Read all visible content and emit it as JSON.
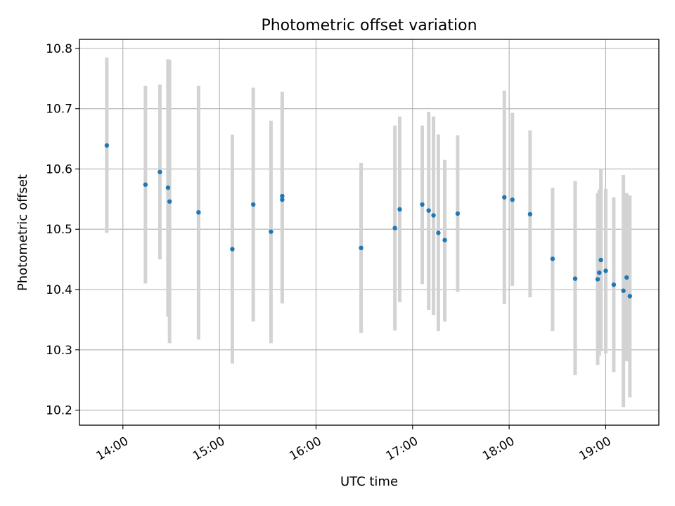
{
  "chart_data": {
    "type": "scatter",
    "title": "Photometric offset variation",
    "xlabel": "UTC time",
    "ylabel": "Photometric offset",
    "x_axis_type": "time",
    "xlim": [
      "13:33",
      "19:33"
    ],
    "ylim": [
      10.175,
      10.815
    ],
    "x_ticks": [
      "14:00",
      "15:00",
      "16:00",
      "17:00",
      "18:00",
      "19:00"
    ],
    "y_ticks": [
      10.2,
      10.3,
      10.4,
      10.5,
      10.6,
      10.7,
      10.8
    ],
    "y_tick_labels": [
      "10.2",
      "10.3",
      "10.4",
      "10.5",
      "10.6",
      "10.7",
      "10.8"
    ],
    "grid": true,
    "colors": {
      "point": "#1f77b4",
      "errorbar": "#d3d3d3"
    },
    "series": [
      {
        "points": [
          {
            "x": "13:50",
            "y": 10.639,
            "yerr_low": 10.494,
            "yerr_high": 10.785
          },
          {
            "x": "14:14",
            "y": 10.574,
            "yerr_low": 10.41,
            "yerr_high": 10.738
          },
          {
            "x": "14:23",
            "y": 10.595,
            "yerr_low": 10.45,
            "yerr_high": 10.74
          },
          {
            "x": "14:28",
            "y": 10.569,
            "yerr_low": 10.355,
            "yerr_high": 10.782
          },
          {
            "x": "14:29",
            "y": 10.546,
            "yerr_low": 10.311,
            "yerr_high": 10.781
          },
          {
            "x": "14:47",
            "y": 10.528,
            "yerr_low": 10.317,
            "yerr_high": 10.738
          },
          {
            "x": "15:08",
            "y": 10.467,
            "yerr_low": 10.277,
            "yerr_high": 10.657
          },
          {
            "x": "15:21",
            "y": 10.541,
            "yerr_low": 10.347,
            "yerr_high": 10.735
          },
          {
            "x": "15:32",
            "y": 10.496,
            "yerr_low": 10.311,
            "yerr_high": 10.68
          },
          {
            "x": "15:39",
            "y": 10.555,
            "yerr_low": 10.38,
            "yerr_high": 10.728
          },
          {
            "x": "15:39",
            "y": 10.549,
            "yerr_low": 10.377,
            "yerr_high": 10.72
          },
          {
            "x": "16:28",
            "y": 10.469,
            "yerr_low": 10.328,
            "yerr_high": 10.61
          },
          {
            "x": "16:49",
            "y": 10.502,
            "yerr_low": 10.332,
            "yerr_high": 10.672
          },
          {
            "x": "16:52",
            "y": 10.533,
            "yerr_low": 10.379,
            "yerr_high": 10.687
          },
          {
            "x": "17:06",
            "y": 10.541,
            "yerr_low": 10.409,
            "yerr_high": 10.672
          },
          {
            "x": "17:10",
            "y": 10.531,
            "yerr_low": 10.366,
            "yerr_high": 10.695
          },
          {
            "x": "17:13",
            "y": 10.523,
            "yerr_low": 10.358,
            "yerr_high": 10.687
          },
          {
            "x": "17:16",
            "y": 10.494,
            "yerr_low": 10.331,
            "yerr_high": 10.657
          },
          {
            "x": "17:20",
            "y": 10.482,
            "yerr_low": 10.347,
            "yerr_high": 10.615
          },
          {
            "x": "17:28",
            "y": 10.526,
            "yerr_low": 10.396,
            "yerr_high": 10.656
          },
          {
            "x": "17:57",
            "y": 10.553,
            "yerr_low": 10.376,
            "yerr_high": 10.73
          },
          {
            "x": "18:02",
            "y": 10.549,
            "yerr_low": 10.406,
            "yerr_high": 10.693
          },
          {
            "x": "18:13",
            "y": 10.525,
            "yerr_low": 10.387,
            "yerr_high": 10.664
          },
          {
            "x": "18:27",
            "y": 10.451,
            "yerr_low": 10.331,
            "yerr_high": 10.569
          },
          {
            "x": "18:41",
            "y": 10.418,
            "yerr_low": 10.258,
            "yerr_high": 10.58
          },
          {
            "x": "18:55",
            "y": 10.417,
            "yerr_low": 10.275,
            "yerr_high": 10.56
          },
          {
            "x": "18:56",
            "y": 10.428,
            "yerr_low": 10.29,
            "yerr_high": 10.566
          },
          {
            "x": "18:57",
            "y": 10.449,
            "yerr_low": 10.298,
            "yerr_high": 10.6
          },
          {
            "x": "19:00",
            "y": 10.431,
            "yerr_low": 10.294,
            "yerr_high": 10.567
          },
          {
            "x": "19:05",
            "y": 10.408,
            "yerr_low": 10.263,
            "yerr_high": 10.553
          },
          {
            "x": "19:11",
            "y": 10.398,
            "yerr_low": 10.205,
            "yerr_high": 10.59
          },
          {
            "x": "19:13",
            "y": 10.42,
            "yerr_low": 10.281,
            "yerr_high": 10.56
          },
          {
            "x": "19:15",
            "y": 10.389,
            "yerr_low": 10.221,
            "yerr_high": 10.556
          }
        ]
      }
    ]
  }
}
